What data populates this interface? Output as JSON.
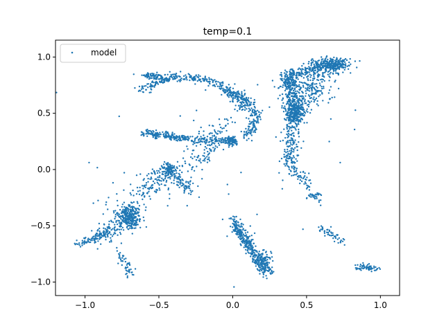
{
  "chart_data": {
    "type": "scatter",
    "title": "temp=0.1",
    "xlabel": "",
    "ylabel": "",
    "xlim": [
      -1.2,
      1.13
    ],
    "ylim": [
      -1.12,
      1.15
    ],
    "xticks": [
      -1.0,
      -0.5,
      0.0,
      0.5,
      1.0
    ],
    "xtick_labels": [
      "−1.0",
      "−0.5",
      "0.0",
      "0.5",
      "1.0"
    ],
    "yticks": [
      -1.0,
      -0.5,
      0.0,
      0.5,
      1.0
    ],
    "ytick_labels": [
      "−1.0",
      "−0.5",
      "0.0",
      "0.5",
      "1.0"
    ],
    "grid": false,
    "legend": {
      "position": "top-left",
      "entries": [
        "model"
      ]
    },
    "series": [
      {
        "name": "model",
        "color": "#1f77b4",
        "marker_size": 1.2,
        "clusters": [
          {
            "shape": "arc",
            "cx": -0.33,
            "cy": 0.4,
            "r": 0.42,
            "a0": 2.35,
            "a1": 0.35,
            "n": 320,
            "spread": 0.018
          },
          {
            "shape": "arc",
            "cx": -0.1,
            "cy": 0.46,
            "r": 0.25,
            "a0": 1.4,
            "a1": -0.75,
            "n": 220,
            "spread": 0.02
          },
          {
            "shape": "blob",
            "cx": -0.55,
            "cy": 0.83,
            "sx": 0.05,
            "sy": 0.015,
            "n": 60
          },
          {
            "shape": "segment",
            "x0": -0.6,
            "y0": 0.33,
            "x1": -0.3,
            "y1": 0.27,
            "n": 170,
            "spread": 0.015
          },
          {
            "shape": "segment",
            "x0": -0.3,
            "y0": 0.27,
            "x1": 0.02,
            "y1": 0.25,
            "n": 120,
            "spread": 0.02
          },
          {
            "shape": "blob",
            "cx": -0.005,
            "cy": 0.26,
            "sx": 0.02,
            "sy": 0.02,
            "n": 80
          },
          {
            "shape": "segment",
            "x0": -0.05,
            "y0": 0.42,
            "x1": -0.28,
            "y1": 0.0,
            "n": 120,
            "spread": 0.05
          },
          {
            "shape": "blob",
            "cx": -0.43,
            "cy": 0.0,
            "sx": 0.03,
            "sy": 0.03,
            "n": 90
          },
          {
            "shape": "segment",
            "x0": -0.43,
            "y0": -0.02,
            "x1": -0.28,
            "y1": -0.18,
            "n": 90,
            "spread": 0.025
          },
          {
            "shape": "segment",
            "x0": -0.43,
            "y0": 0.0,
            "x1": -0.65,
            "y1": -0.25,
            "n": 110,
            "spread": 0.05
          },
          {
            "shape": "blob",
            "cx": -0.7,
            "cy": -0.42,
            "sx": 0.04,
            "sy": 0.05,
            "n": 280
          },
          {
            "shape": "segment",
            "x0": -0.72,
            "y0": -0.45,
            "x1": -0.92,
            "y1": -0.6,
            "n": 100,
            "spread": 0.04
          },
          {
            "shape": "segment",
            "x0": -0.85,
            "y0": -0.55,
            "x1": -1.05,
            "y1": -0.67,
            "n": 80,
            "spread": 0.015
          },
          {
            "shape": "segment",
            "x0": -0.78,
            "y0": -0.72,
            "x1": -0.68,
            "y1": -0.93,
            "n": 50,
            "spread": 0.02
          },
          {
            "shape": "segment",
            "x0": -0.95,
            "y0": -0.3,
            "x1": -0.45,
            "y1": -0.15,
            "n": 40,
            "spread": 0.1
          },
          {
            "shape": "segment",
            "x0": 0.0,
            "y0": -0.45,
            "x1": 0.12,
            "y1": -0.7,
            "n": 200,
            "spread": 0.02
          },
          {
            "shape": "segment",
            "x0": 0.12,
            "y0": -0.7,
            "x1": 0.25,
            "y1": -0.92,
            "n": 160,
            "spread": 0.025
          },
          {
            "shape": "blob",
            "cx": 0.2,
            "cy": -0.82,
            "sx": 0.03,
            "sy": 0.04,
            "n": 90
          },
          {
            "shape": "segment",
            "x0": 0.6,
            "y0": -0.52,
            "x1": 0.75,
            "y1": -0.65,
            "n": 50,
            "spread": 0.015
          },
          {
            "shape": "segment",
            "x0": 0.83,
            "y0": -0.87,
            "x1": 0.98,
            "y1": -0.88,
            "n": 60,
            "spread": 0.015
          },
          {
            "shape": "segment",
            "x0": 0.35,
            "y0": 0.82,
            "x1": 0.68,
            "y1": 0.95,
            "n": 200,
            "spread": 0.03
          },
          {
            "shape": "blob",
            "cx": 0.68,
            "cy": 0.93,
            "sx": 0.06,
            "sy": 0.03,
            "n": 240
          },
          {
            "shape": "blob",
            "cx": 0.38,
            "cy": 0.78,
            "sx": 0.03,
            "sy": 0.03,
            "n": 90
          },
          {
            "shape": "segment",
            "x0": 0.38,
            "y0": 0.78,
            "x1": 0.41,
            "y1": 0.45,
            "n": 160,
            "spread": 0.03
          },
          {
            "shape": "blob",
            "cx": 0.42,
            "cy": 0.5,
            "sx": 0.03,
            "sy": 0.06,
            "n": 220
          },
          {
            "shape": "segment",
            "x0": 0.41,
            "y0": 0.45,
            "x1": 0.38,
            "y1": 0.0,
            "n": 150,
            "spread": 0.03
          },
          {
            "shape": "segment",
            "x0": 0.38,
            "y0": 0.1,
            "x1": 0.58,
            "y1": -0.28,
            "n": 100,
            "spread": 0.025
          },
          {
            "shape": "segment",
            "x0": 0.42,
            "y0": 0.5,
            "x1": 0.63,
            "y1": 0.9,
            "n": 180,
            "spread": 0.05
          },
          {
            "shape": "blob",
            "cx": 0.52,
            "cy": 0.7,
            "sx": 0.08,
            "sy": 0.08,
            "n": 80
          },
          {
            "shape": "blob",
            "cx": 0.0,
            "cy": 0.0,
            "sx": 0.6,
            "sy": 0.6,
            "n": 45
          }
        ]
      }
    ]
  }
}
